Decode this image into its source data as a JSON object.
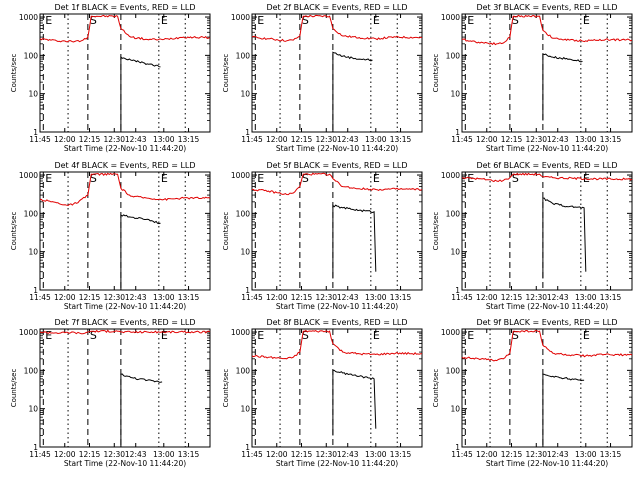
{
  "figure": {
    "background": "#ffffff",
    "x_ticks": [
      "11:45",
      "12:00",
      "12:15",
      "12:30",
      "12:43",
      "13:00",
      "13:15"
    ],
    "x_tick_minutes": [
      705,
      720,
      735,
      750,
      763,
      780,
      795
    ],
    "x_range": [
      705,
      808
    ],
    "y_ticks": [
      "1",
      "10",
      "100",
      "1000"
    ],
    "y_range": [
      1,
      1200
    ],
    "y_scale": "log",
    "ylabel": "Counts/sec",
    "xlabel": "Start Time (22-Nov-10 11:44:20)",
    "colors": {
      "events": "#000000",
      "lld": "#e00000"
    }
  },
  "chart_data": [
    {
      "type": "line",
      "title": "Det 1f BLACK = Events, RED = LLD",
      "markers": [
        {
          "label": "E",
          "minute": 707,
          "style": "dashed"
        },
        {
          "label": "",
          "minute": 722,
          "style": "dotted"
        },
        {
          "label": "S",
          "minute": 734,
          "style": "dashed"
        },
        {
          "label": "",
          "minute": 754,
          "style": "dashed"
        },
        {
          "label": "E",
          "minute": 777,
          "style": "dotted"
        },
        {
          "label": "",
          "minute": 793,
          "style": "dotted"
        }
      ],
      "series": [
        {
          "color": "#e00000",
          "points": [
            [
              705,
              270
            ],
            [
              715,
              240
            ],
            [
              726,
              230
            ],
            [
              730,
              240
            ],
            [
              734,
              300
            ],
            [
              736,
              1050
            ],
            [
              752,
              1050
            ],
            [
              754,
              500
            ],
            [
              760,
              300
            ],
            [
              770,
              260
            ],
            [
              780,
              260
            ],
            [
              792,
              300
            ],
            [
              808,
              290
            ]
          ]
        },
        {
          "color": "#e00000",
          "points": []
        },
        {
          "color": "#000000",
          "points": [
            [
              754,
              1
            ],
            [
              754,
              90
            ],
            [
              760,
              75
            ],
            [
              770,
              60
            ],
            [
              778,
              50
            ]
          ]
        }
      ]
    },
    {
      "type": "line",
      "title": "Det 2f BLACK = Events, RED = LLD",
      "markers": [
        {
          "label": "E",
          "minute": 707,
          "style": "dashed"
        },
        {
          "label": "",
          "minute": 722,
          "style": "dotted"
        },
        {
          "label": "S",
          "minute": 734,
          "style": "dashed"
        },
        {
          "label": "",
          "minute": 754,
          "style": "dashed"
        },
        {
          "label": "E",
          "minute": 777,
          "style": "dotted"
        },
        {
          "label": "",
          "minute": 793,
          "style": "dotted"
        }
      ],
      "series": [
        {
          "color": "#e00000",
          "points": [
            [
              705,
              300
            ],
            [
              715,
              270
            ],
            [
              726,
              240
            ],
            [
              730,
              250
            ],
            [
              734,
              320
            ],
            [
              736,
              1050
            ],
            [
              752,
              1050
            ],
            [
              754,
              500
            ],
            [
              760,
              320
            ],
            [
              770,
              290
            ],
            [
              780,
              270
            ],
            [
              792,
              300
            ],
            [
              808,
              290
            ]
          ]
        },
        {
          "color": "#000000",
          "points": [
            [
              754,
              1
            ],
            [
              754,
              120
            ],
            [
              760,
              95
            ],
            [
              770,
              80
            ],
            [
              778,
              75
            ]
          ]
        }
      ]
    },
    {
      "type": "line",
      "title": "Det 3f BLACK = Events, RED = LLD",
      "markers": [
        {
          "label": "E",
          "minute": 707,
          "style": "dashed"
        },
        {
          "label": "",
          "minute": 722,
          "style": "dotted"
        },
        {
          "label": "S",
          "minute": 734,
          "style": "dashed"
        },
        {
          "label": "",
          "minute": 754,
          "style": "dashed"
        },
        {
          "label": "E",
          "minute": 777,
          "style": "dotted"
        },
        {
          "label": "",
          "minute": 793,
          "style": "dotted"
        }
      ],
      "series": [
        {
          "color": "#e00000",
          "points": [
            [
              705,
              260
            ],
            [
              715,
              220
            ],
            [
              726,
              200
            ],
            [
              730,
              210
            ],
            [
              734,
              300
            ],
            [
              736,
              1050
            ],
            [
              752,
              1050
            ],
            [
              754,
              450
            ],
            [
              760,
              280
            ],
            [
              770,
              250
            ],
            [
              780,
              240
            ],
            [
              792,
              260
            ],
            [
              808,
              250
            ]
          ]
        },
        {
          "color": "#000000",
          "points": [
            [
              754,
              2
            ],
            [
              754,
              110
            ],
            [
              760,
              90
            ],
            [
              770,
              80
            ],
            [
              778,
              70
            ]
          ]
        }
      ]
    },
    {
      "type": "line",
      "title": "Det 4f BLACK = Events, RED = LLD",
      "markers": [
        {
          "label": "E",
          "minute": 707,
          "style": "dashed"
        },
        {
          "label": "",
          "minute": 722,
          "style": "dotted"
        },
        {
          "label": "S",
          "minute": 734,
          "style": "dashed"
        },
        {
          "label": "",
          "minute": 754,
          "style": "dashed"
        },
        {
          "label": "E",
          "minute": 777,
          "style": "dotted"
        },
        {
          "label": "",
          "minute": 793,
          "style": "dotted"
        }
      ],
      "series": [
        {
          "color": "#e00000",
          "points": [
            [
              705,
              230
            ],
            [
              715,
              190
            ],
            [
              722,
              160
            ],
            [
              728,
              190
            ],
            [
              734,
              300
            ],
            [
              736,
              1050
            ],
            [
              752,
              1050
            ],
            [
              754,
              450
            ],
            [
              760,
              280
            ],
            [
              770,
              250
            ],
            [
              780,
              230
            ],
            [
              792,
              250
            ],
            [
              808,
              250
            ]
          ]
        },
        {
          "color": "#000000",
          "points": [
            [
              754,
              1
            ],
            [
              754,
              90
            ],
            [
              760,
              80
            ],
            [
              770,
              70
            ],
            [
              778,
              55
            ]
          ]
        }
      ]
    },
    {
      "type": "line",
      "title": "Det 5f BLACK = Events, RED = LLD",
      "markers": [
        {
          "label": "E",
          "minute": 707,
          "style": "dashed"
        },
        {
          "label": "",
          "minute": 722,
          "style": "dotted"
        },
        {
          "label": "S",
          "minute": 734,
          "style": "dashed"
        },
        {
          "label": "",
          "minute": 754,
          "style": "dashed"
        },
        {
          "label": "E",
          "minute": 777,
          "style": "dotted"
        },
        {
          "label": "",
          "minute": 793,
          "style": "dotted"
        }
      ],
      "series": [
        {
          "color": "#e00000",
          "points": [
            [
              705,
              420
            ],
            [
              715,
              380
            ],
            [
              726,
              310
            ],
            [
              730,
              340
            ],
            [
              734,
              500
            ],
            [
              736,
              1050
            ],
            [
              752,
              1050
            ],
            [
              754,
              800
            ],
            [
              760,
              500
            ],
            [
              770,
              440
            ],
            [
              780,
              420
            ],
            [
              792,
              430
            ],
            [
              808,
              420
            ]
          ]
        },
        {
          "color": "#000000",
          "points": [
            [
              754,
              2
            ],
            [
              754,
              160
            ],
            [
              760,
              140
            ],
            [
              770,
              120
            ],
            [
              779,
              110
            ],
            [
              780,
              3
            ]
          ]
        }
      ]
    },
    {
      "type": "line",
      "title": "Det 6f BLACK = Events, RED = LLD",
      "markers": [
        {
          "label": "E",
          "minute": 707,
          "style": "dashed"
        },
        {
          "label": "",
          "minute": 722,
          "style": "dotted"
        },
        {
          "label": "S",
          "minute": 734,
          "style": "dashed"
        },
        {
          "label": "",
          "minute": 754,
          "style": "dashed"
        },
        {
          "label": "E",
          "minute": 777,
          "style": "dotted"
        },
        {
          "label": "",
          "minute": 793,
          "style": "dotted"
        }
      ],
      "series": [
        {
          "color": "#e00000",
          "points": [
            [
              705,
              850
            ],
            [
              715,
              800
            ],
            [
              726,
              700
            ],
            [
              730,
              720
            ],
            [
              734,
              850
            ],
            [
              736,
              1050
            ],
            [
              752,
              1050
            ],
            [
              754,
              900
            ],
            [
              760,
              850
            ],
            [
              780,
              800
            ],
            [
              808,
              780
            ]
          ]
        },
        {
          "color": "#000000",
          "points": [
            [
              754,
              2
            ],
            [
              754,
              250
            ],
            [
              760,
              180
            ],
            [
              770,
              150
            ],
            [
              779,
              140
            ],
            [
              780,
              3
            ]
          ]
        }
      ]
    },
    {
      "type": "line",
      "title": "Det 7f BLACK = Events, RED = LLD",
      "markers": [
        {
          "label": "E",
          "minute": 707,
          "style": "dashed"
        },
        {
          "label": "",
          "minute": 722,
          "style": "dotted"
        },
        {
          "label": "S",
          "minute": 734,
          "style": "dashed"
        },
        {
          "label": "",
          "minute": 754,
          "style": "dashed"
        },
        {
          "label": "E",
          "minute": 777,
          "style": "dotted"
        },
        {
          "label": "",
          "minute": 793,
          "style": "dotted"
        }
      ],
      "series": [
        {
          "color": "#e00000",
          "points": [
            [
              705,
              1000
            ],
            [
              715,
              950
            ],
            [
              726,
              980
            ],
            [
              730,
              900
            ],
            [
              734,
              1000
            ],
            [
              736,
              1050
            ],
            [
              752,
              1050
            ],
            [
              754,
              1000
            ],
            [
              770,
              1000
            ],
            [
              780,
              1000
            ],
            [
              808,
              1000
            ]
          ]
        },
        {
          "color": "#000000",
          "points": [
            [
              754,
              1
            ],
            [
              754,
              80
            ],
            [
              760,
              65
            ],
            [
              770,
              55
            ],
            [
              779,
              50
            ]
          ]
        }
      ]
    },
    {
      "type": "line",
      "title": "Det 8f BLACK = Events, RED = LLD",
      "markers": [
        {
          "label": "E",
          "minute": 707,
          "style": "dashed"
        },
        {
          "label": "",
          "minute": 722,
          "style": "dotted"
        },
        {
          "label": "S",
          "minute": 734,
          "style": "dashed"
        },
        {
          "label": "",
          "minute": 754,
          "style": "dashed"
        },
        {
          "label": "E",
          "minute": 777,
          "style": "dotted"
        },
        {
          "label": "",
          "minute": 793,
          "style": "dotted"
        }
      ],
      "series": [
        {
          "color": "#e00000",
          "points": [
            [
              705,
              240
            ],
            [
              715,
              220
            ],
            [
              726,
              200
            ],
            [
              730,
              220
            ],
            [
              734,
              300
            ],
            [
              736,
              1050
            ],
            [
              752,
              1050
            ],
            [
              754,
              500
            ],
            [
              760,
              300
            ],
            [
              770,
              270
            ],
            [
              780,
              260
            ],
            [
              792,
              280
            ],
            [
              808,
              270
            ]
          ]
        },
        {
          "color": "#000000",
          "points": [
            [
              754,
              2
            ],
            [
              754,
              100
            ],
            [
              760,
              85
            ],
            [
              770,
              70
            ],
            [
              779,
              60
            ],
            [
              780,
              3
            ]
          ]
        }
      ]
    },
    {
      "type": "line",
      "title": "Det 9f BLACK = Events, RED = LLD",
      "markers": [
        {
          "label": "E",
          "minute": 707,
          "style": "dashed"
        },
        {
          "label": "",
          "minute": 722,
          "style": "dotted"
        },
        {
          "label": "S",
          "minute": 734,
          "style": "dashed"
        },
        {
          "label": "",
          "minute": 754,
          "style": "dashed"
        },
        {
          "label": "E",
          "minute": 777,
          "style": "dotted"
        },
        {
          "label": "",
          "minute": 793,
          "style": "dotted"
        }
      ],
      "series": [
        {
          "color": "#e00000",
          "points": [
            [
              705,
              220
            ],
            [
              715,
              200
            ],
            [
              726,
              180
            ],
            [
              730,
              200
            ],
            [
              734,
              280
            ],
            [
              736,
              1050
            ],
            [
              752,
              1050
            ],
            [
              754,
              450
            ],
            [
              760,
              280
            ],
            [
              770,
              250
            ],
            [
              780,
              240
            ],
            [
              792,
              260
            ],
            [
              808,
              250
            ]
          ]
        },
        {
          "color": "#000000",
          "points": [
            [
              754,
              1
            ],
            [
              754,
              80
            ],
            [
              760,
              70
            ],
            [
              770,
              60
            ],
            [
              779,
              55
            ]
          ]
        }
      ]
    }
  ]
}
